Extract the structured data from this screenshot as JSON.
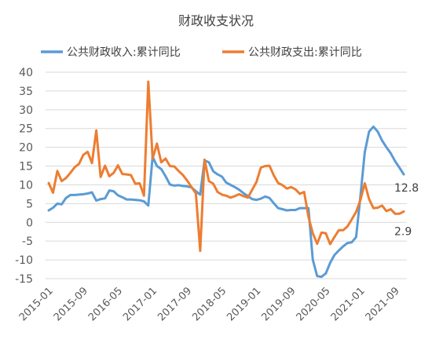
{
  "chart_data": {
    "type": "line",
    "title": "财政收支状况",
    "xlabel": "",
    "ylabel": "",
    "ylim": [
      -15,
      40
    ],
    "y_ticks": [
      -15,
      -10,
      -5,
      0,
      5,
      10,
      15,
      20,
      25,
      30,
      35,
      40
    ],
    "x_tick_labels": [
      "2015-01",
      "2015-09",
      "2016-05",
      "2017-01",
      "2017-09",
      "2018-05",
      "2019-01",
      "2019-09",
      "2020-05",
      "2021-01",
      "2021-09"
    ],
    "x_tick_dates": [
      "2015-01",
      "2015-09",
      "2016-05",
      "2017-01",
      "2017-09",
      "2018-05",
      "2019-01",
      "2019-09",
      "2020-05",
      "2021-01",
      "2021-09"
    ],
    "x_start": "2015-01",
    "x_end": "2021-11",
    "grid": "horizontal",
    "legend_position": "top",
    "series": [
      {
        "name": "公共财政收入:累计同比",
        "color": "#5b9bd5",
        "end_label": "12.8",
        "points": [
          [
            "2015-01",
            3.2
          ],
          [
            "2015-02",
            3.9
          ],
          [
            "2015-03",
            5.0
          ],
          [
            "2015-04",
            4.8
          ],
          [
            "2015-05",
            6.5
          ],
          [
            "2015-06",
            7.3
          ],
          [
            "2015-07",
            7.3
          ],
          [
            "2015-08",
            7.4
          ],
          [
            "2015-09",
            7.5
          ],
          [
            "2015-10",
            7.7
          ],
          [
            "2015-11",
            8.0
          ],
          [
            "2015-12",
            5.8
          ],
          [
            "2016-01",
            6.2
          ],
          [
            "2016-02",
            6.4
          ],
          [
            "2016-03",
            8.5
          ],
          [
            "2016-04",
            8.3
          ],
          [
            "2016-05",
            7.2
          ],
          [
            "2016-06",
            6.7
          ],
          [
            "2016-07",
            6.1
          ],
          [
            "2016-08",
            6.1
          ],
          [
            "2016-09",
            6.0
          ],
          [
            "2016-10",
            5.9
          ],
          [
            "2016-11",
            5.6
          ],
          [
            "2016-12",
            4.5
          ],
          [
            "2017-01",
            17.5
          ],
          [
            "2017-02",
            15.0
          ],
          [
            "2017-03",
            14.2
          ],
          [
            "2017-04",
            12.3
          ],
          [
            "2017-05",
            10.1
          ],
          [
            "2017-06",
            9.8
          ],
          [
            "2017-07",
            9.9
          ],
          [
            "2017-08",
            9.7
          ],
          [
            "2017-09",
            9.6
          ],
          [
            "2017-10",
            9.3
          ],
          [
            "2017-11",
            8.3
          ],
          [
            "2017-12",
            7.4
          ],
          [
            "2018-01",
            16.5
          ],
          [
            "2018-02",
            16.0
          ],
          [
            "2018-03",
            13.6
          ],
          [
            "2018-04",
            12.8
          ],
          [
            "2018-05",
            12.2
          ],
          [
            "2018-06",
            10.6
          ],
          [
            "2018-07",
            10.0
          ],
          [
            "2018-08",
            9.4
          ],
          [
            "2018-09",
            8.7
          ],
          [
            "2018-10",
            7.8
          ],
          [
            "2018-11",
            7.0
          ],
          [
            "2018-12",
            6.2
          ],
          [
            "2019-01",
            6.0
          ],
          [
            "2019-02",
            6.3
          ],
          [
            "2019-03",
            6.9
          ],
          [
            "2019-04",
            6.5
          ],
          [
            "2019-05",
            5.1
          ],
          [
            "2019-06",
            3.8
          ],
          [
            "2019-07",
            3.5
          ],
          [
            "2019-08",
            3.2
          ],
          [
            "2019-09",
            3.3
          ],
          [
            "2019-10",
            3.3
          ],
          [
            "2019-11",
            3.8
          ],
          [
            "2019-12",
            3.8
          ],
          [
            "2020-01",
            3.8
          ],
          [
            "2020-02",
            -9.9
          ],
          [
            "2020-03",
            -14.3
          ],
          [
            "2020-04",
            -14.5
          ],
          [
            "2020-05",
            -13.6
          ],
          [
            "2020-06",
            -10.8
          ],
          [
            "2020-07",
            -8.7
          ],
          [
            "2020-08",
            -7.5
          ],
          [
            "2020-09",
            -6.4
          ],
          [
            "2020-10",
            -5.5
          ],
          [
            "2020-11",
            -5.3
          ],
          [
            "2020-12",
            -3.9
          ],
          [
            "2021-01",
            7.0
          ],
          [
            "2021-02",
            18.7
          ],
          [
            "2021-03",
            24.2
          ],
          [
            "2021-04",
            25.5
          ],
          [
            "2021-05",
            24.2
          ],
          [
            "2021-06",
            21.8
          ],
          [
            "2021-07",
            20.0
          ],
          [
            "2021-08",
            18.4
          ],
          [
            "2021-09",
            16.3
          ],
          [
            "2021-10",
            14.6
          ],
          [
            "2021-11",
            12.8
          ]
        ]
      },
      {
        "name": "公共财政支出:累计同比",
        "color": "#ed7d31",
        "end_label": "2.9",
        "points": [
          [
            "2015-01",
            10.5
          ],
          [
            "2015-02",
            7.9
          ],
          [
            "2015-03",
            13.7
          ],
          [
            "2015-04",
            11.0
          ],
          [
            "2015-05",
            11.8
          ],
          [
            "2015-06",
            13.2
          ],
          [
            "2015-07",
            14.7
          ],
          [
            "2015-08",
            15.6
          ],
          [
            "2015-09",
            18.0
          ],
          [
            "2015-10",
            18.8
          ],
          [
            "2015-11",
            15.8
          ],
          [
            "2015-12",
            24.5
          ],
          [
            "2016-01",
            12.1
          ],
          [
            "2016-02",
            15.1
          ],
          [
            "2016-03",
            12.3
          ],
          [
            "2016-04",
            13.2
          ],
          [
            "2016-05",
            15.2
          ],
          [
            "2016-06",
            12.9
          ],
          [
            "2016-07",
            12.8
          ],
          [
            "2016-08",
            12.6
          ],
          [
            "2016-09",
            10.3
          ],
          [
            "2016-10",
            10.4
          ],
          [
            "2016-11",
            7.1
          ],
          [
            "2016-12",
            37.5
          ],
          [
            "2017-01",
            17.0
          ],
          [
            "2017-02",
            21.0
          ],
          [
            "2017-03",
            16.0
          ],
          [
            "2017-04",
            17.0
          ],
          [
            "2017-05",
            15.0
          ],
          [
            "2017-06",
            14.9
          ],
          [
            "2017-07",
            13.7
          ],
          [
            "2017-08",
            12.6
          ],
          [
            "2017-09",
            11.1
          ],
          [
            "2017-10",
            9.4
          ],
          [
            "2017-11",
            7.7
          ],
          [
            "2017-12",
            -7.6
          ],
          [
            "2018-01",
            16.7
          ],
          [
            "2018-02",
            11.0
          ],
          [
            "2018-03",
            10.3
          ],
          [
            "2018-04",
            8.1
          ],
          [
            "2018-05",
            7.4
          ],
          [
            "2018-06",
            7.1
          ],
          [
            "2018-07",
            6.6
          ],
          [
            "2018-08",
            7.0
          ],
          [
            "2018-09",
            7.5
          ],
          [
            "2018-10",
            7.0
          ],
          [
            "2018-11",
            6.6
          ],
          [
            "2018-12",
            8.7
          ],
          [
            "2019-01",
            10.8
          ],
          [
            "2019-02",
            14.6
          ],
          [
            "2019-03",
            15.0
          ],
          [
            "2019-04",
            15.1
          ],
          [
            "2019-05",
            12.5
          ],
          [
            "2019-06",
            10.5
          ],
          [
            "2019-07",
            9.9
          ],
          [
            "2019-08",
            9.0
          ],
          [
            "2019-09",
            9.4
          ],
          [
            "2019-10",
            8.8
          ],
          [
            "2019-11",
            7.6
          ],
          [
            "2019-12",
            8.1
          ],
          [
            "2020-01",
            1.5
          ],
          [
            "2020-02",
            -2.9
          ],
          [
            "2020-03",
            -5.7
          ],
          [
            "2020-04",
            -2.7
          ],
          [
            "2020-05",
            -2.9
          ],
          [
            "2020-06",
            -5.8
          ],
          [
            "2020-07",
            -3.9
          ],
          [
            "2020-08",
            -2.1
          ],
          [
            "2020-09",
            -2.1
          ],
          [
            "2020-10",
            -1.1
          ],
          [
            "2020-11",
            0.8
          ],
          [
            "2020-12",
            2.8
          ],
          [
            "2021-01",
            6.0
          ],
          [
            "2021-02",
            10.4
          ],
          [
            "2021-03",
            6.2
          ],
          [
            "2021-04",
            3.8
          ],
          [
            "2021-05",
            3.9
          ],
          [
            "2021-06",
            4.5
          ],
          [
            "2021-07",
            3.0
          ],
          [
            "2021-08",
            3.5
          ],
          [
            "2021-09",
            2.3
          ],
          [
            "2021-10",
            2.3
          ],
          [
            "2021-11",
            2.9
          ]
        ]
      }
    ]
  }
}
